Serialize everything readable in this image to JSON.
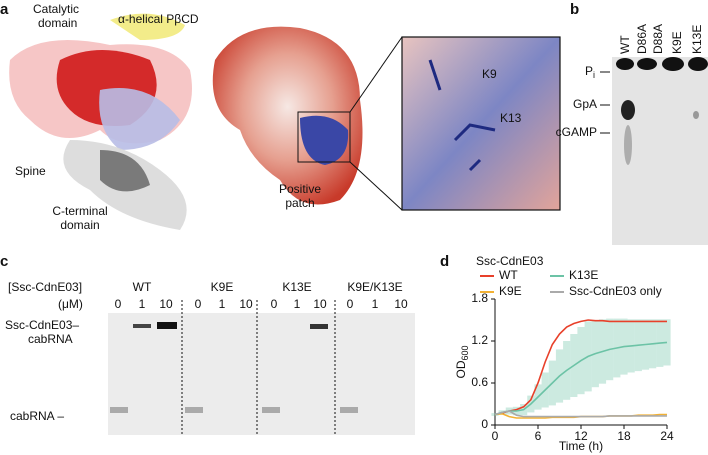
{
  "panel_a": {
    "letter": "a",
    "catalytic_domain": [
      "Catalytic",
      "domain"
    ],
    "helical": "α-helical PβCD",
    "spine": "Spine",
    "c_terminal": [
      "C-terminal",
      "domain"
    ],
    "positive_patch": [
      "Positive",
      "patch"
    ],
    "k9": "K9",
    "k13": "K13"
  },
  "panel_b": {
    "letter": "b",
    "lanes": [
      "WT",
      "D86A",
      "D88A",
      "K9E",
      "K13E"
    ],
    "pi": "P",
    "pi_sub": "i",
    "gpa": "GpA",
    "cgamp": "cGAMP"
  },
  "panel_c": {
    "letter": "c",
    "conc_label": "[Ssc-CdnE03]",
    "unit": "(μM)",
    "groups": [
      "WT",
      "K9E",
      "K13E",
      "K9E/K13E"
    ],
    "concentrations": [
      0,
      1,
      10
    ],
    "complex": [
      "Ssc-CdnE03–",
      "cabRNA"
    ],
    "free": "cabRNA –"
  },
  "chart_data": {
    "type": "line",
    "letter": "d",
    "legend_title": "Ssc-CdnE03",
    "xlabel": "Time (h)",
    "ylabel": "OD",
    "ylabel_sub": "600",
    "x": [
      0,
      1,
      2,
      3,
      4,
      5,
      6,
      7,
      8,
      9,
      10,
      11,
      12,
      13,
      14,
      15,
      16,
      17,
      18,
      19,
      20,
      21,
      22,
      23,
      24
    ],
    "series": [
      {
        "name": "WT",
        "color": "#e8402a",
        "values": [
          0.15,
          0.17,
          0.2,
          0.22,
          0.26,
          0.36,
          0.6,
          0.9,
          1.15,
          1.3,
          1.4,
          1.45,
          1.48,
          1.5,
          1.49,
          1.49,
          1.48,
          1.48,
          1.48,
          1.48,
          1.48,
          1.48,
          1.48,
          1.48,
          1.48
        ]
      },
      {
        "name": "K9E",
        "color": "#f2b134",
        "values": [
          0.15,
          0.16,
          0.12,
          0.1,
          0.1,
          0.1,
          0.1,
          0.1,
          0.11,
          0.11,
          0.11,
          0.11,
          0.12,
          0.12,
          0.12,
          0.12,
          0.13,
          0.13,
          0.13,
          0.13,
          0.14,
          0.14,
          0.14,
          0.15,
          0.15
        ]
      },
      {
        "name": "K13E",
        "color": "#6cc3a6",
        "values": [
          0.15,
          0.18,
          0.2,
          0.2,
          0.22,
          0.3,
          0.4,
          0.5,
          0.6,
          0.7,
          0.78,
          0.85,
          0.92,
          0.98,
          1.02,
          1.05,
          1.08,
          1.1,
          1.12,
          1.13,
          1.14,
          1.15,
          1.16,
          1.17,
          1.18
        ],
        "errors": [
          0.02,
          0.03,
          0.05,
          0.06,
          0.08,
          0.12,
          0.18,
          0.25,
          0.32,
          0.38,
          0.42,
          0.45,
          0.48,
          0.5,
          0.48,
          0.46,
          0.44,
          0.42,
          0.4,
          0.38,
          0.37,
          0.36,
          0.35,
          0.34,
          0.33
        ]
      },
      {
        "name": "Ssc-CdnE03 only",
        "color": "#aaaaaa",
        "values": [
          0.15,
          0.18,
          0.2,
          0.14,
          0.12,
          0.12,
          0.12,
          0.12,
          0.12,
          0.12,
          0.12,
          0.12,
          0.12,
          0.12,
          0.12,
          0.12,
          0.13,
          0.13,
          0.13,
          0.13,
          0.13,
          0.13,
          0.13,
          0.13,
          0.13
        ]
      }
    ],
    "xlim": [
      0,
      24
    ],
    "ylim": [
      0,
      1.8
    ],
    "xticks": [
      0,
      6,
      12,
      18,
      24
    ],
    "yticks": [
      0,
      0.6,
      1.2,
      1.8
    ]
  }
}
